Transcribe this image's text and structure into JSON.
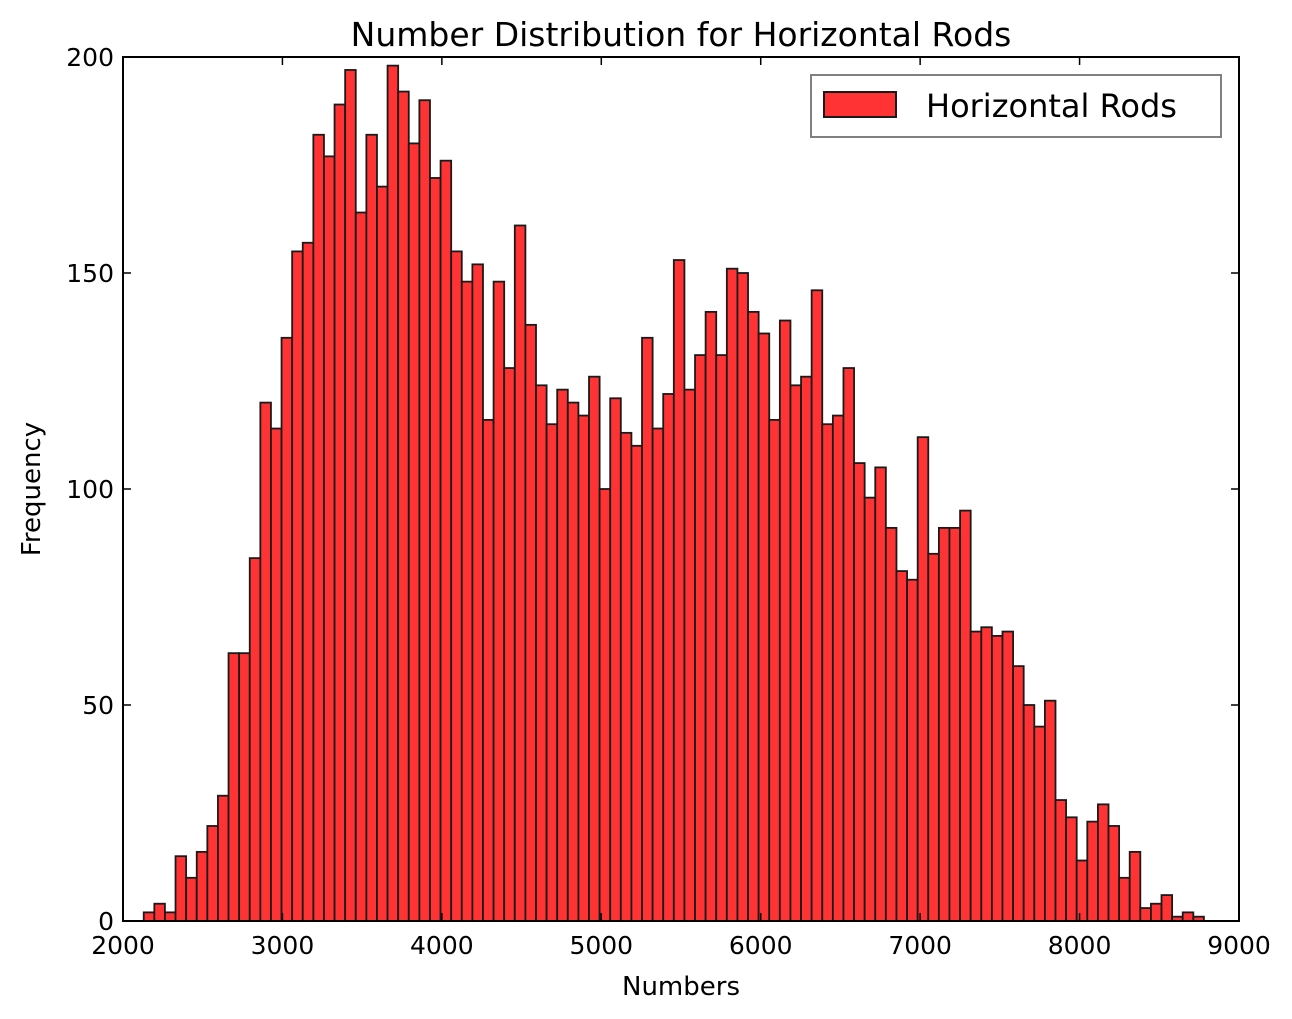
{
  "chart_data": {
    "type": "bar",
    "title": "Number Distribution for Horizontal Rods",
    "xlabel": "Numbers",
    "ylabel": "Frequency",
    "xlim": [
      2000,
      9000
    ],
    "ylim": [
      0,
      200
    ],
    "xticks": [
      2000,
      3000,
      4000,
      5000,
      6000,
      7000,
      8000,
      9000
    ],
    "yticks": [
      0,
      50,
      100,
      150,
      200
    ],
    "grid": false,
    "legend_position": "top-right",
    "bar_color": "#ff3333",
    "edge_color": "#1a1a1a",
    "bin_start": 2130,
    "bin_width": 66.5,
    "series": [
      {
        "name": "Horizontal Rods",
        "values": [
          2,
          4,
          2,
          15,
          10,
          16,
          22,
          29,
          62,
          62,
          84,
          120,
          114,
          135,
          155,
          157,
          182,
          177,
          189,
          197,
          164,
          182,
          170,
          198,
          192,
          180,
          190,
          172,
          176,
          155,
          148,
          152,
          116,
          148,
          128,
          161,
          138,
          124,
          115,
          123,
          120,
          117,
          126,
          100,
          121,
          113,
          110,
          135,
          114,
          122,
          153,
          123,
          131,
          141,
          131,
          151,
          150,
          141,
          136,
          116,
          139,
          124,
          126,
          146,
          115,
          117,
          128,
          106,
          98,
          105,
          91,
          81,
          79,
          112,
          85,
          91,
          91,
          95,
          67,
          68,
          66,
          67,
          59,
          50,
          45,
          51,
          28,
          24,
          14,
          23,
          27,
          22,
          10,
          16,
          3,
          4,
          6,
          1,
          2,
          1
        ]
      }
    ]
  }
}
